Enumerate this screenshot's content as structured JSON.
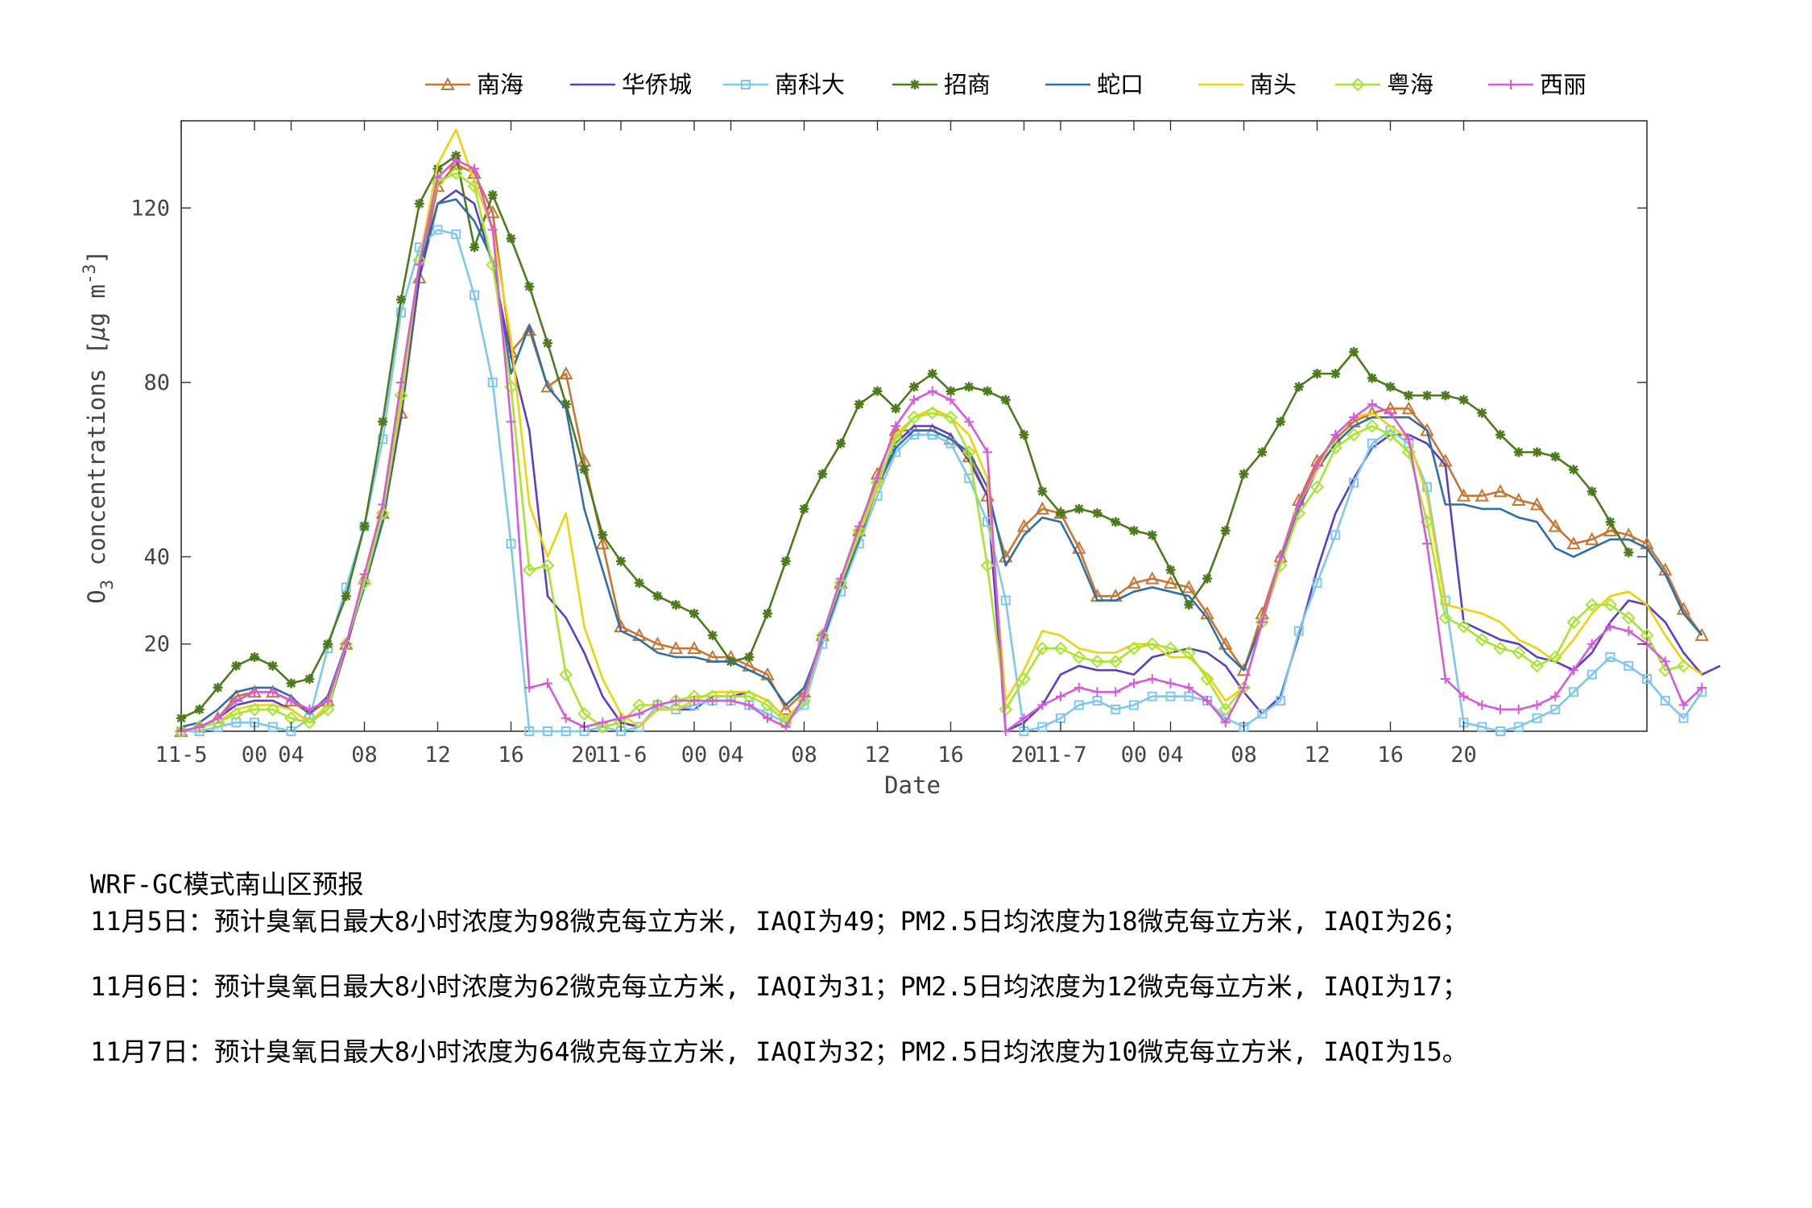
{
  "chart_data": {
    "type": "line",
    "xlabel": "Date",
    "ylabel_main": "O",
    "ylabel_sub": "3",
    "ylabel_rest": " concentrations [",
    "ylabel_unit_mu": "μ",
    "ylabel_unit_g": "g m",
    "ylabel_unit_sup": "-3",
    "ylabel_close": "]",
    "xlim": [
      0,
      80
    ],
    "ylim": [
      0,
      140
    ],
    "yticks": [
      {
        "value": 20,
        "label": "20"
      },
      {
        "value": 40,
        "label": "40"
      },
      {
        "value": 80,
        "label": "80"
      },
      {
        "value": 120,
        "label": "120"
      }
    ],
    "xticks": [
      {
        "value": 0,
        "label": "11-5"
      },
      {
        "value": 4,
        "label": "00"
      },
      {
        "value": 6,
        "label": "04"
      },
      {
        "value": 10,
        "label": "08"
      },
      {
        "value": 14,
        "label": "12"
      },
      {
        "value": 18,
        "label": "16"
      },
      {
        "value": 22,
        "label": "20"
      },
      {
        "value": 24,
        "label": "11-6"
      },
      {
        "value": 28,
        "label": "00"
      },
      {
        "value": 30,
        "label": "04"
      },
      {
        "value": 34,
        "label": "08"
      },
      {
        "value": 38,
        "label": "12"
      },
      {
        "value": 42,
        "label": "16"
      },
      {
        "value": 46,
        "label": "20"
      },
      {
        "value": 48,
        "label": "11-7"
      },
      {
        "value": 52,
        "label": "00"
      },
      {
        "value": 54,
        "label": "04"
      },
      {
        "value": 58,
        "label": "08"
      },
      {
        "value": 62,
        "label": "12"
      },
      {
        "value": 66,
        "label": "16"
      },
      {
        "value": 70,
        "label": "20"
      }
    ],
    "legend_position": "top",
    "grid": false,
    "series": [
      {
        "name": "南海",
        "color": "#c87533",
        "marker": "triangle",
        "values": [
          0,
          1,
          3,
          8,
          9,
          9,
          7,
          4,
          7,
          20,
          35,
          50,
          73,
          104,
          125,
          130,
          128,
          119,
          87,
          92,
          79,
          82,
          62,
          43,
          24,
          22,
          20,
          19,
          19,
          17,
          17,
          15,
          13,
          5,
          9,
          22,
          34,
          46,
          59,
          69,
          69,
          69,
          67,
          63,
          54,
          40,
          47,
          51,
          50,
          42,
          31,
          31,
          34,
          35,
          34,
          33,
          27,
          20,
          14,
          27,
          40,
          53,
          62,
          67,
          71,
          73,
          74,
          74,
          69,
          62,
          54,
          54,
          55,
          53,
          52,
          47,
          43,
          44,
          46,
          45,
          43,
          37,
          28,
          22
        ]
      },
      {
        "name": "华侨城",
        "color": "#5a3ec8",
        "marker": "none",
        "values": [
          0,
          1,
          3,
          6,
          7,
          7,
          5,
          2,
          5,
          19,
          34,
          48,
          72,
          104,
          121,
          124,
          121,
          107,
          86,
          69,
          31,
          26,
          18,
          8,
          2,
          1,
          5,
          5,
          5,
          8,
          8,
          9,
          7,
          3,
          7,
          21,
          33,
          45,
          57,
          66,
          70,
          70,
          68,
          62,
          54,
          0,
          2,
          6,
          13,
          15,
          14,
          14,
          13,
          17,
          18,
          19,
          18,
          15,
          9,
          4,
          8,
          22,
          37,
          50,
          58,
          65,
          68,
          68,
          66,
          61,
          25,
          23,
          21,
          20,
          17,
          16,
          14,
          18,
          25,
          30,
          29,
          25,
          18,
          13,
          15
        ]
      },
      {
        "name": "南科大",
        "color": "#7ec8f0",
        "marker": "square",
        "values": [
          0,
          0,
          1,
          2,
          2,
          1,
          0,
          3,
          19,
          33,
          47,
          67,
          96,
          111,
          115,
          114,
          100,
          80,
          43,
          0,
          0,
          0,
          0,
          1,
          0,
          1,
          6,
          5,
          6,
          7,
          7,
          6,
          4,
          2,
          6,
          20,
          32,
          43,
          54,
          64,
          68,
          68,
          66,
          58,
          48,
          30,
          0,
          1,
          3,
          6,
          7,
          5,
          6,
          8,
          8,
          8,
          7,
          3,
          1,
          4,
          7,
          23,
          34,
          45,
          57,
          66,
          69,
          66,
          56,
          30,
          2,
          1,
          0,
          1,
          3,
          5,
          9,
          13,
          17,
          15,
          12,
          7,
          3,
          9
        ]
      },
      {
        "name": "招商",
        "color": "#4e7a1e",
        "marker": "star",
        "values": [
          3,
          5,
          10,
          15,
          17,
          15,
          11,
          12,
          20,
          31,
          47,
          71,
          99,
          121,
          129,
          132,
          111,
          123,
          113,
          102,
          89,
          75,
          60,
          45,
          39,
          34,
          31,
          29,
          27,
          22,
          16,
          17,
          27,
          39,
          51,
          59,
          66,
          75,
          78,
          74,
          79,
          82,
          78,
          79,
          78,
          76,
          68,
          55,
          50,
          51,
          50,
          48,
          46,
          45,
          37,
          29,
          35,
          46,
          59,
          64,
          71,
          79,
          82,
          82,
          87,
          81,
          79,
          77,
          77,
          77,
          76,
          73,
          68,
          64,
          64,
          63,
          60,
          55,
          48,
          41
        ]
      },
      {
        "name": "蛇口",
        "color": "#2e6fa8",
        "marker": "none",
        "values": [
          1,
          2,
          5,
          9,
          10,
          10,
          8,
          4,
          8,
          20,
          33,
          48,
          74,
          106,
          121,
          122,
          117,
          108,
          82,
          93,
          79,
          74,
          51,
          37,
          23,
          21,
          18,
          17,
          17,
          16,
          16,
          14,
          12,
          6,
          10,
          21,
          33,
          44,
          56,
          65,
          69,
          69,
          67,
          64,
          56,
          38,
          45,
          49,
          48,
          40,
          30,
          30,
          32,
          33,
          32,
          31,
          26,
          18,
          14,
          25,
          39,
          51,
          60,
          66,
          70,
          72,
          72,
          72,
          69,
          52,
          52,
          51,
          51,
          49,
          48,
          42,
          40,
          42,
          44,
          44,
          42,
          36,
          27,
          22
        ]
      },
      {
        "name": "南头",
        "color": "#f0d20a",
        "marker": "none",
        "values": [
          0,
          1,
          2,
          5,
          6,
          6,
          5,
          2,
          6,
          20,
          35,
          50,
          75,
          108,
          130,
          138,
          126,
          115,
          90,
          52,
          40,
          50,
          24,
          12,
          4,
          1,
          5,
          5,
          7,
          9,
          9,
          9,
          7,
          3,
          7,
          22,
          34,
          45,
          56,
          68,
          72,
          74,
          72,
          68,
          58,
          7,
          14,
          23,
          22,
          19,
          18,
          18,
          20,
          20,
          17,
          17,
          13,
          7,
          10,
          25,
          40,
          52,
          60,
          68,
          72,
          73,
          70,
          67,
          54,
          29,
          28,
          27,
          25,
          21,
          19,
          16,
          21,
          27,
          31,
          32,
          29,
          22,
          16,
          13
        ]
      },
      {
        "name": "粤海",
        "color": "#a6e62e",
        "marker": "diamond",
        "values": [
          0,
          1,
          2,
          4,
          5,
          5,
          3,
          2,
          5,
          20,
          34,
          50,
          77,
          108,
          126,
          128,
          125,
          107,
          79,
          37,
          38,
          13,
          4,
          1,
          2,
          6,
          6,
          7,
          8,
          8,
          8,
          8,
          6,
          2,
          7,
          22,
          34,
          46,
          57,
          67,
          72,
          73,
          72,
          64,
          38,
          5,
          12,
          19,
          19,
          17,
          16,
          16,
          19,
          20,
          19,
          18,
          12,
          5,
          10,
          25,
          38,
          50,
          56,
          65,
          68,
          70,
          68,
          64,
          48,
          26,
          24,
          21,
          19,
          18,
          15,
          17,
          25,
          29,
          29,
          26,
          22,
          14,
          15
        ]
      },
      {
        "name": "西丽",
        "color": "#d85ad8",
        "marker": "plus",
        "values": [
          0,
          1,
          3,
          7,
          9,
          9,
          7,
          5,
          7,
          20,
          36,
          52,
          80,
          107,
          127,
          131,
          129,
          115,
          71,
          10,
          11,
          3,
          1,
          2,
          3,
          4,
          6,
          7,
          7,
          7,
          7,
          6,
          3,
          1,
          8,
          22,
          35,
          47,
          58,
          70,
          76,
          78,
          76,
          71,
          64,
          0,
          3,
          6,
          8,
          10,
          9,
          9,
          11,
          12,
          11,
          10,
          7,
          2,
          10,
          25,
          40,
          52,
          61,
          68,
          72,
          75,
          73,
          67,
          43,
          12,
          8,
          6,
          5,
          5,
          6,
          8,
          14,
          20,
          24,
          23,
          20,
          16,
          6,
          10
        ]
      }
    ]
  },
  "forecast": {
    "title": "WRF-GC模式南山区预报",
    "lines": [
      "11月5日：预计臭氧日最大8小时浓度为98微克每立方米, IAQI为49；PM2.5日均浓度为18微克每立方米, IAQI为26；",
      "11月6日：预计臭氧日最大8小时浓度为62微克每立方米, IAQI为31；PM2.5日均浓度为12微克每立方米, IAQI为17；",
      "11月7日：预计臭氧日最大8小时浓度为64微克每立方米, IAQI为32；PM2.5日均浓度为10微克每立方米, IAQI为15。"
    ]
  }
}
